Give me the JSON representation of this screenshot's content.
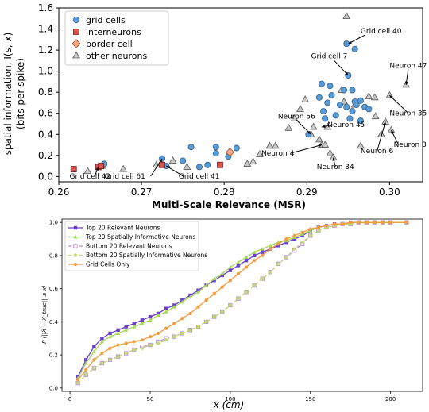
{
  "chart_data": [
    {
      "type": "scatter",
      "xlabel": "Multi-Scale Relevance (MSR)",
      "ylabel_lines": [
        "spatial information, I(s, x)",
        "(bits per spike)"
      ],
      "xlim": [
        0.26,
        0.304
      ],
      "ylim": [
        -0.05,
        1.6
      ],
      "xticks": [
        "0.26",
        "0.27",
        "0.28",
        "0.29",
        "0.30"
      ],
      "yticks": [
        "0.0",
        "0.2",
        "0.4",
        "0.6",
        "0.8",
        "1.0",
        "1.2",
        "1.4",
        "1.6"
      ],
      "legend": [
        "grid cells",
        "interneurons",
        "border cell",
        "other neurons"
      ],
      "colors": {
        "grid": "#5b9bd5",
        "inter": "#d9534f",
        "border": "#f4a582",
        "other": "#c8c8c8"
      },
      "series": [
        {
          "name": "grid cells",
          "points": [
            [
              0.2655,
              0.12
            ],
            [
              0.2725,
              0.17
            ],
            [
              0.273,
              0.1
            ],
            [
              0.275,
              0.15
            ],
            [
              0.276,
              0.28
            ],
            [
              0.277,
              0.09
            ],
            [
              0.278,
              0.11
            ],
            [
              0.279,
              0.28
            ],
            [
              0.279,
              0.22
            ],
            [
              0.2805,
              0.19
            ],
            [
              0.2815,
              0.27
            ],
            [
              0.2902,
              0.4
            ],
            [
              0.2915,
              0.75
            ],
            [
              0.2918,
              0.88
            ],
            [
              0.292,
              0.62
            ],
            [
              0.2922,
              0.55
            ],
            [
              0.2925,
              0.7
            ],
            [
              0.2928,
              0.86
            ],
            [
              0.293,
              0.77
            ],
            [
              0.2935,
              0.58
            ],
            [
              0.294,
              0.68
            ],
            [
              0.2945,
              0.82
            ],
            [
              0.2948,
              0.66
            ],
            [
              0.295,
              0.96
            ],
            [
              0.2952,
              0.55
            ],
            [
              0.2955,
              0.82
            ],
            [
              0.2955,
              0.62
            ],
            [
              0.2958,
              0.71
            ],
            [
              0.296,
              0.68
            ],
            [
              0.2965,
              0.72
            ],
            [
              0.2965,
              0.53
            ],
            [
              0.297,
              0.66
            ],
            [
              0.2975,
              0.64
            ],
            [
              0.2948,
              1.26
            ],
            [
              0.2958,
              1.21
            ]
          ]
        },
        {
          "name": "interneurons",
          "points": [
            [
              0.2618,
              0.07
            ],
            [
              0.2648,
              0.09
            ],
            [
              0.2651,
              0.1
            ],
            [
              0.2725,
              0.11
            ],
            [
              0.2795,
              0.11
            ]
          ]
        },
        {
          "name": "border cell",
          "points": [
            [
              0.2807,
              0.23
            ]
          ]
        },
        {
          "name": "other neurons",
          "points": [
            [
              0.2635,
              0.05
            ],
            [
              0.2652,
              0.1
            ],
            [
              0.2678,
              0.07
            ],
            [
              0.2718,
              0.11
            ],
            [
              0.2738,
              0.15
            ],
            [
              0.2755,
              0.09
            ],
            [
              0.2828,
              0.12
            ],
            [
              0.2835,
              0.14
            ],
            [
              0.2843,
              0.21
            ],
            [
              0.2855,
              0.29
            ],
            [
              0.2862,
              0.29
            ],
            [
              0.2878,
              0.46
            ],
            [
              0.2885,
              0.55
            ],
            [
              0.2892,
              0.64
            ],
            [
              0.2898,
              0.73
            ],
            [
              0.2905,
              0.4
            ],
            [
              0.2908,
              0.47
            ],
            [
              0.2915,
              0.35
            ],
            [
              0.2918,
              0.3
            ],
            [
              0.2922,
              0.3
            ],
            [
              0.2925,
              0.47
            ],
            [
              0.2928,
              0.22
            ],
            [
              0.2932,
              0.18
            ],
            [
              0.2942,
              0.82
            ],
            [
              0.2945,
              0.71
            ],
            [
              0.2948,
              1.52
            ],
            [
              0.2958,
              0.68
            ],
            [
              0.2965,
              0.29
            ],
            [
              0.2975,
              0.76
            ],
            [
              0.2982,
              0.75
            ],
            [
              0.2983,
              0.57
            ],
            [
              0.299,
              0.4
            ],
            [
              0.2995,
              0.52
            ],
            [
              0.3,
              0.77
            ],
            [
              0.3002,
              0.44
            ],
            [
              0.302,
              0.87
            ]
          ]
        }
      ],
      "annotations": [
        {
          "label": "Grid cell 40",
          "text_pos": [
            0.2965,
            1.36
          ],
          "point": [
            0.295,
            1.26
          ]
        },
        {
          "label": "Grid cell 7",
          "text_pos": [
            0.2905,
            1.12
          ],
          "point": [
            0.295,
            0.96
          ]
        },
        {
          "label": "Neuron 47",
          "text_pos": [
            0.3,
            1.03
          ],
          "point": [
            0.302,
            0.87
          ]
        },
        {
          "label": "Neuron 56",
          "text_pos": [
            0.2865,
            0.55
          ],
          "point": [
            0.2905,
            0.4
          ]
        },
        {
          "label": "Neuron 45",
          "text_pos": [
            0.2925,
            0.47
          ],
          "point": [
            0.2918,
            0.47
          ]
        },
        {
          "label": "Neuron 35",
          "text_pos": [
            0.3,
            0.58
          ],
          "point": [
            0.3,
            0.77
          ]
        },
        {
          "label": "Neuron 4",
          "text_pos": [
            0.2845,
            0.2
          ],
          "point": [
            0.2918,
            0.3
          ]
        },
        {
          "label": "Neuron 6",
          "text_pos": [
            0.2965,
            0.22
          ],
          "point": [
            0.2995,
            0.52
          ]
        },
        {
          "label": "Neuron 3",
          "text_pos": [
            0.3005,
            0.28
          ],
          "point": [
            0.3002,
            0.44
          ]
        },
        {
          "label": "Neuron 34",
          "text_pos": [
            0.2912,
            0.07
          ],
          "point": [
            0.2932,
            0.18
          ]
        },
        {
          "label": "Grid cell 42",
          "text_pos": [
            0.2613,
            -0.02
          ],
          "point": [
            0.2648,
            0.09
          ]
        },
        {
          "label": "Grid cell 61",
          "text_pos": [
            0.2655,
            -0.02
          ],
          "point": [
            0.2725,
            0.17
          ]
        },
        {
          "label": "Grid cell 41",
          "text_pos": [
            0.2745,
            -0.02
          ],
          "point": [
            0.273,
            0.1
          ]
        }
      ]
    },
    {
      "type": "line",
      "xlabel": "x (cm)",
      "ylabel": "P (||X̂ − X_true|| ≤ x)",
      "xlim": [
        -5,
        220
      ],
      "ylim": [
        -0.02,
        1.02
      ],
      "xticks": [
        "0",
        "50",
        "100",
        "150",
        "200"
      ],
      "yticks": [
        "0.0",
        "0.2",
        "0.4",
        "0.6",
        "0.8",
        "1.0"
      ],
      "x": [
        5,
        10,
        15,
        20,
        25,
        30,
        35,
        40,
        45,
        50,
        55,
        60,
        65,
        70,
        75,
        80,
        85,
        90,
        95,
        100,
        105,
        110,
        115,
        120,
        125,
        130,
        135,
        140,
        145,
        150,
        155,
        160,
        165,
        170,
        175,
        180,
        185,
        190,
        195,
        200,
        210
      ],
      "series": [
        {
          "name": "Top 20 Relevant Neurons",
          "color": "#6a3fcf",
          "marker": "square",
          "dash": "",
          "values": [
            0.07,
            0.17,
            0.25,
            0.3,
            0.33,
            0.35,
            0.37,
            0.39,
            0.41,
            0.43,
            0.45,
            0.48,
            0.5,
            0.53,
            0.56,
            0.59,
            0.62,
            0.65,
            0.68,
            0.71,
            0.74,
            0.77,
            0.8,
            0.82,
            0.84,
            0.86,
            0.88,
            0.9,
            0.92,
            0.95,
            0.97,
            0.98,
            0.99,
            0.99,
            1.0,
            1.0,
            1.0,
            1.0,
            1.0,
            1.0,
            1.0
          ]
        },
        {
          "name": "Top 20 Spatially Informative Neurons",
          "color": "#a6d854",
          "marker": "triangle",
          "dash": "",
          "values": [
            0.06,
            0.15,
            0.22,
            0.28,
            0.31,
            0.33,
            0.35,
            0.37,
            0.39,
            0.41,
            0.44,
            0.46,
            0.49,
            0.52,
            0.55,
            0.58,
            0.62,
            0.66,
            0.69,
            0.73,
            0.76,
            0.79,
            0.82,
            0.84,
            0.86,
            0.88,
            0.89,
            0.91,
            0.93,
            0.95,
            0.97,
            0.98,
            0.99,
            0.99,
            1.0,
            1.0,
            1.0,
            1.0,
            1.0,
            1.0,
            1.0
          ]
        },
        {
          "name": "Bottom 20 Relevant Neurons",
          "color": "#b38cd9",
          "marker": "square-open",
          "dash": "4,3",
          "values": [
            0.03,
            0.08,
            0.12,
            0.15,
            0.17,
            0.19,
            0.21,
            0.23,
            0.25,
            0.26,
            0.28,
            0.3,
            0.31,
            0.33,
            0.35,
            0.37,
            0.4,
            0.43,
            0.46,
            0.5,
            0.54,
            0.58,
            0.62,
            0.66,
            0.7,
            0.75,
            0.79,
            0.83,
            0.87,
            0.92,
            0.95,
            0.97,
            0.98,
            0.99,
            0.99,
            1.0,
            1.0,
            1.0,
            1.0,
            1.0,
            1.0
          ]
        },
        {
          "name": "Bottom 20 Spatially Informative Neurons",
          "color": "#c2d96b",
          "marker": "circle",
          "dash": "4,3",
          "values": [
            0.03,
            0.08,
            0.12,
            0.15,
            0.17,
            0.19,
            0.21,
            0.23,
            0.24,
            0.26,
            0.27,
            0.29,
            0.31,
            0.33,
            0.35,
            0.37,
            0.4,
            0.43,
            0.46,
            0.5,
            0.54,
            0.58,
            0.62,
            0.66,
            0.7,
            0.75,
            0.79,
            0.84,
            0.88,
            0.92,
            0.95,
            0.97,
            0.98,
            0.99,
            0.99,
            1.0,
            1.0,
            1.0,
            1.0,
            1.0,
            1.0
          ]
        },
        {
          "name": "Grid Cells Only",
          "color": "#f39c3c",
          "marker": "circle",
          "dash": "",
          "values": [
            0.05,
            0.11,
            0.17,
            0.21,
            0.24,
            0.26,
            0.27,
            0.28,
            0.29,
            0.31,
            0.33,
            0.36,
            0.39,
            0.42,
            0.45,
            0.49,
            0.53,
            0.57,
            0.61,
            0.65,
            0.69,
            0.73,
            0.77,
            0.8,
            0.84,
            0.87,
            0.9,
            0.92,
            0.94,
            0.96,
            0.97,
            0.98,
            0.99,
            0.99,
            1.0,
            1.0,
            1.0,
            1.0,
            1.0,
            1.0,
            1.0
          ]
        }
      ]
    }
  ]
}
